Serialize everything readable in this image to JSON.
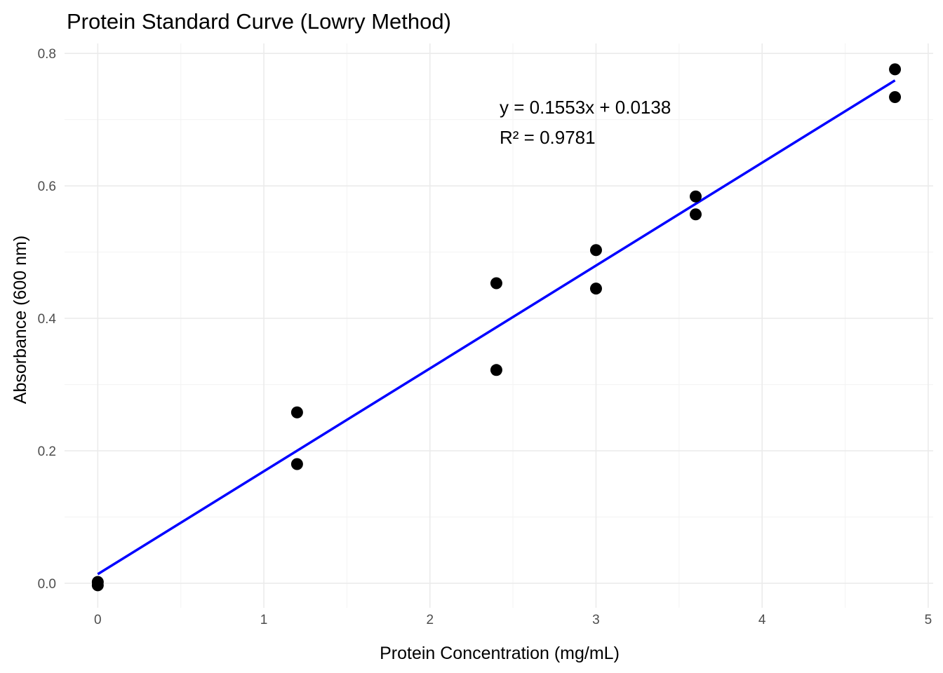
{
  "chart_data": {
    "type": "scatter",
    "title": "Protein Standard Curve (Lowry Method)",
    "xlabel": "Protein Concentration (mg/mL)",
    "ylabel": "Absorbance (600 nm)",
    "xlim": [
      -0.2,
      5.03
    ],
    "ylim": [
      -0.037,
      0.815
    ],
    "x_ticks": [
      0,
      1,
      2,
      3,
      4,
      5
    ],
    "y_ticks": [
      0.0,
      0.2,
      0.4,
      0.6,
      0.8
    ],
    "x_tick_labels": [
      "0",
      "1",
      "2",
      "3",
      "4",
      "5"
    ],
    "y_tick_labels": [
      "0.0",
      "0.2",
      "0.4",
      "0.6",
      "0.8"
    ],
    "grid": true,
    "legend": "none",
    "series": [
      {
        "type": "scatter",
        "color": "#000000",
        "points": [
          {
            "x": 0,
            "y": 0.002
          },
          {
            "x": 0,
            "y": -0.003
          },
          {
            "x": 1.2,
            "y": 0.258
          },
          {
            "x": 1.2,
            "y": 0.18
          },
          {
            "x": 2.4,
            "y": 0.453
          },
          {
            "x": 2.4,
            "y": 0.322
          },
          {
            "x": 3.0,
            "y": 0.503
          },
          {
            "x": 3.0,
            "y": 0.445
          },
          {
            "x": 3.6,
            "y": 0.584
          },
          {
            "x": 3.6,
            "y": 0.557
          },
          {
            "x": 4.8,
            "y": 0.776
          },
          {
            "x": 4.8,
            "y": 0.734
          }
        ]
      },
      {
        "type": "line",
        "color": "#0000ff",
        "slope": 0.1553,
        "intercept": 0.0138,
        "x_range": [
          0,
          4.8
        ]
      }
    ],
    "annotations": {
      "equation": "y = 0.1553x + 0.0138",
      "r_squared": "R² = 0.9781"
    }
  }
}
